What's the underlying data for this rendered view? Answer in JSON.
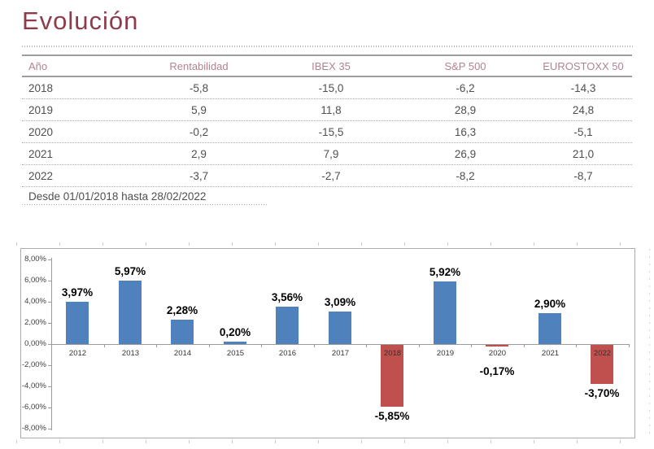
{
  "page": {
    "title": "Evolución"
  },
  "colors": {
    "title_text": "#8e3c4c",
    "table_header_text": "#b2838f",
    "table_body_text": "#4f4f4f",
    "rule_solid": "#9d9d9d",
    "rule_dotted": "#adadad"
  },
  "table": {
    "columns": [
      "Año",
      "Rentabilidad",
      "IBEX 35",
      "S&P 500",
      "EUROSTOXX 50"
    ],
    "rows": [
      [
        "2018",
        "-5,8",
        "-15,0",
        "-6,2",
        "-14,3"
      ],
      [
        "2019",
        "5,9",
        "11,8",
        "28,9",
        "24,8"
      ],
      [
        "2020",
        "-0,2",
        "-15,5",
        "16,3",
        "-5,1"
      ],
      [
        "2021",
        "2,9",
        "7,9",
        "26,9",
        "21,0"
      ],
      [
        "2022",
        "-3,7",
        "-2,7",
        "-8,2",
        "-8,7"
      ]
    ],
    "footnote": "Desde 01/01/2018 hasta 28/02/2022"
  },
  "chart_data": {
    "type": "bar",
    "title": "",
    "xlabel": "",
    "ylabel": "",
    "categories": [
      "2012",
      "2013",
      "2014",
      "2015",
      "2016",
      "2017",
      "2018",
      "2019",
      "2020",
      "2021",
      "2022"
    ],
    "values": [
      3.97,
      5.97,
      2.28,
      0.2,
      3.56,
      3.09,
      -5.85,
      5.92,
      -0.17,
      2.9,
      -3.7
    ],
    "value_labels": [
      "3,97%",
      "5,97%",
      "2,28%",
      "0,20%",
      "3,56%",
      "3,09%",
      "-5,85%",
      "5,92%",
      "-0,17%",
      "2,90%",
      "-3,70%"
    ],
    "y_tick_labels": [
      "8,00%",
      "6,00%",
      "4,00%",
      "2,00%",
      "0,00%",
      "-2,00%",
      "-4,00%",
      "-6,00%",
      "-8,00%"
    ],
    "y_tick_values": [
      8,
      6,
      4,
      2,
      0,
      -2,
      -4,
      -6,
      -8
    ],
    "ylim": [
      -8,
      8
    ],
    "grid": false,
    "legend": "none",
    "positive_color": "#4f81bd",
    "negative_color": "#c0504d"
  }
}
